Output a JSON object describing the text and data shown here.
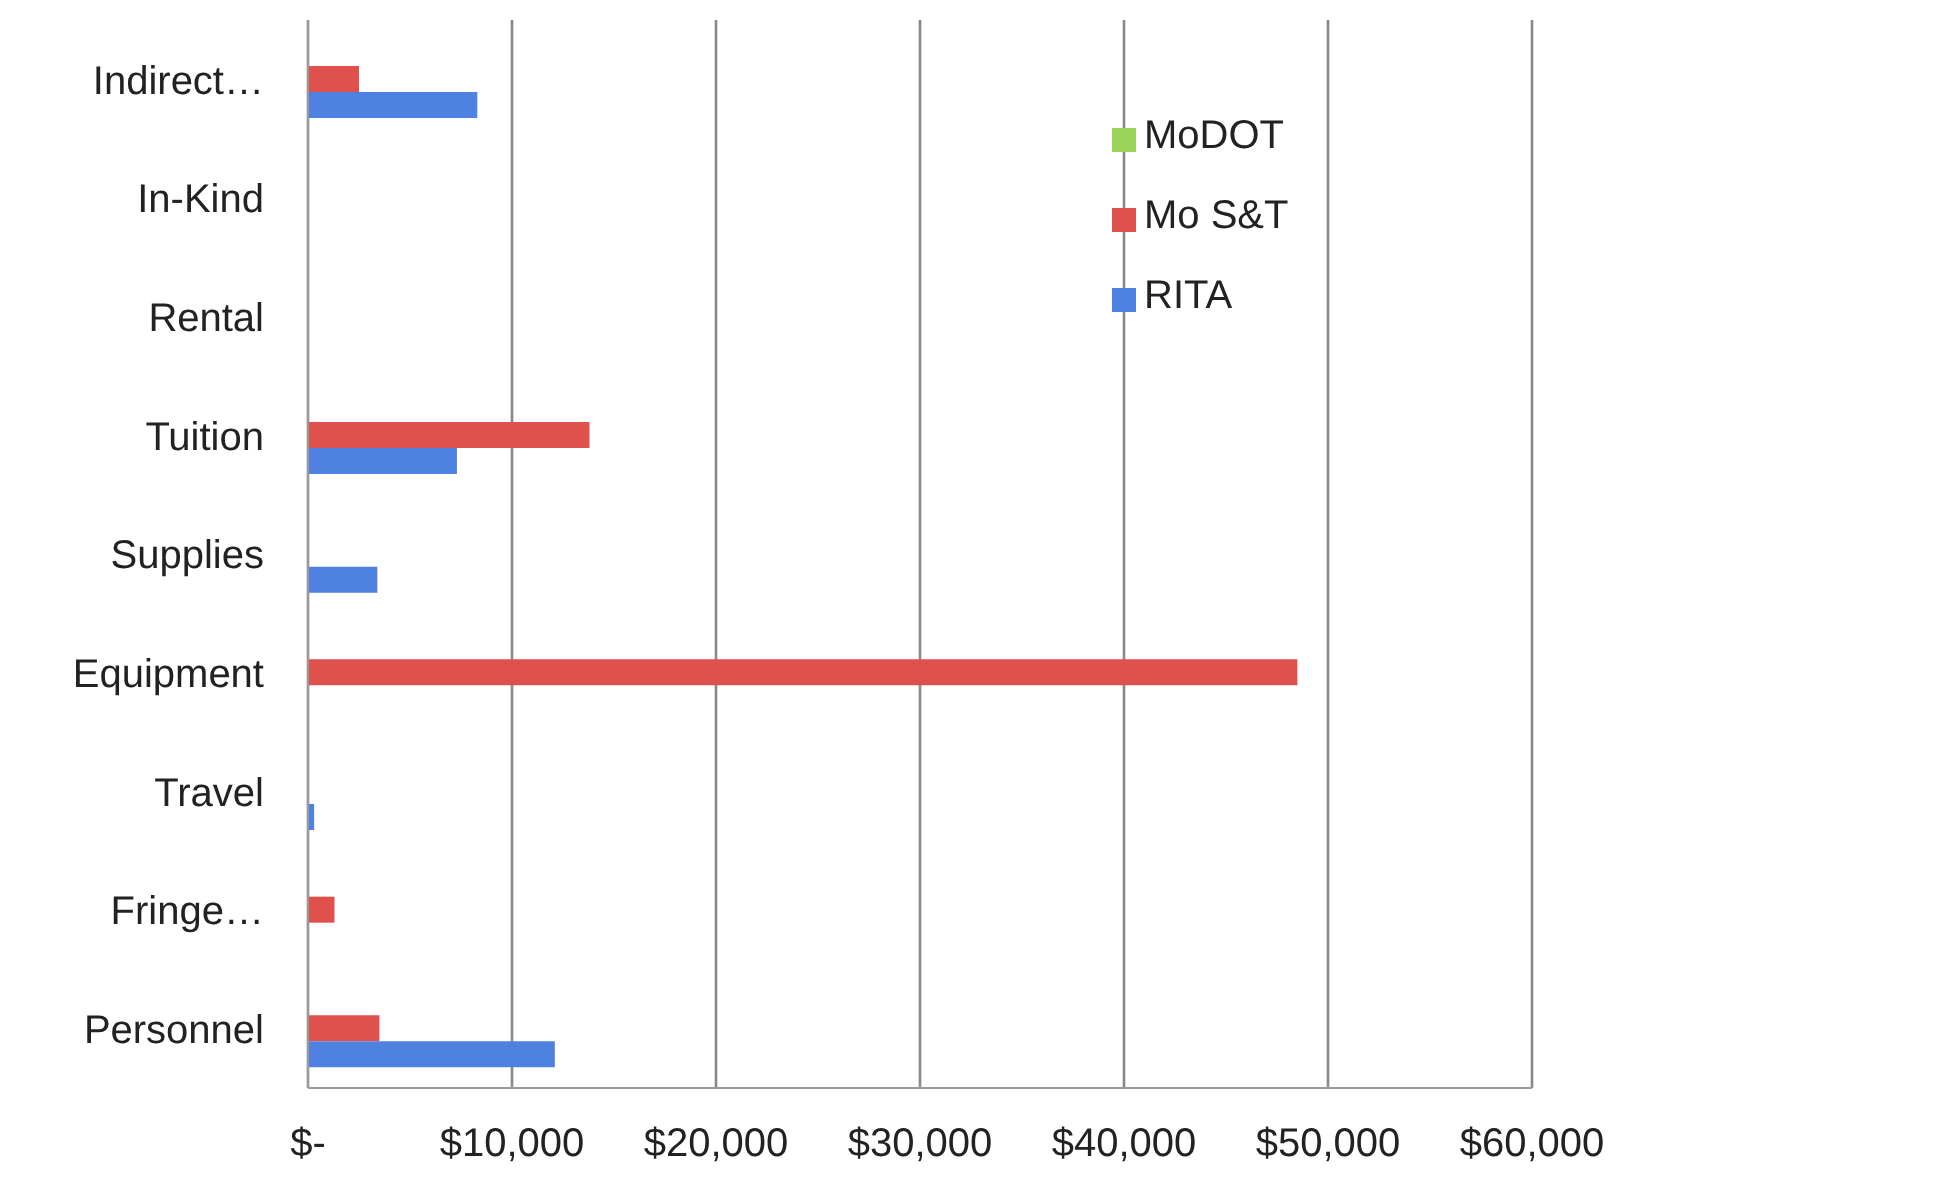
{
  "chart_data": {
    "type": "bar",
    "orientation": "horizontal",
    "categories": [
      "Indirect…",
      "In-Kind",
      "Rental",
      "Tuition",
      "Supplies",
      "Equipment",
      "Travel",
      "Fringe…",
      "Personnel"
    ],
    "series": [
      {
        "name": "MoDOT",
        "color": "#9bd35a",
        "values": [
          0,
          0,
          0,
          0,
          0,
          0,
          0,
          0,
          0
        ]
      },
      {
        "name": "Mo S&T",
        "color": "#e0504d",
        "values": [
          2500,
          0,
          0,
          13800,
          0,
          48500,
          0,
          1300,
          3500
        ]
      },
      {
        "name": "RITA",
        "color": "#4f81e0",
        "values": [
          8300,
          0,
          0,
          7300,
          3400,
          0,
          300,
          0,
          12100
        ]
      }
    ],
    "xlim": [
      0,
      60000
    ],
    "xticks": [
      {
        "value": 0,
        "label": "$-"
      },
      {
        "value": 10000,
        "label": "$10,000"
      },
      {
        "value": 20000,
        "label": "$20,000"
      },
      {
        "value": 30000,
        "label": "$30,000"
      },
      {
        "value": 40000,
        "label": "$40,000"
      },
      {
        "value": 50000,
        "label": "$50,000"
      },
      {
        "value": 60000,
        "label": "$60,000"
      }
    ],
    "grid": "x",
    "legend": "top right"
  }
}
